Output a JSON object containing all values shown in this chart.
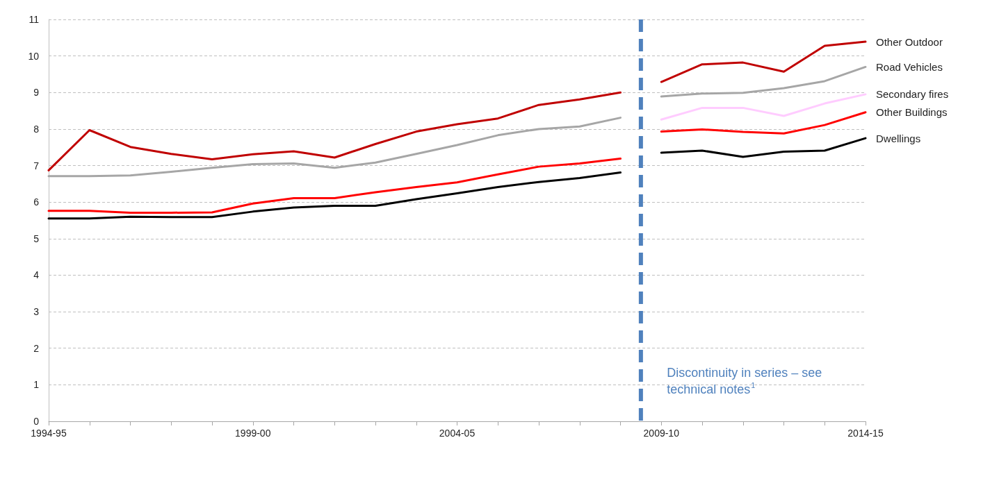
{
  "chart_data": {
    "type": "line",
    "categories": [
      "1994-95",
      null,
      null,
      null,
      null,
      "1999-00",
      null,
      null,
      null,
      null,
      "2004-05",
      null,
      null,
      null,
      null,
      "2009-10",
      null,
      null,
      null,
      null,
      "2014-15"
    ],
    "series": [
      {
        "color": "#c00000",
        "values": [
          6.87,
          7.97,
          7.51,
          7.32,
          7.17,
          7.31,
          7.39,
          7.22,
          7.59,
          7.93,
          8.13,
          8.29,
          8.66,
          8.81,
          9.0,
          null,
          null,
          null,
          null,
          null,
          null
        ]
      },
      {
        "color": "#a6a6a6",
        "values": [
          6.71,
          6.71,
          6.73,
          6.83,
          6.94,
          7.04,
          7.06,
          6.94,
          7.08,
          7.32,
          7.56,
          7.83,
          8.0,
          8.07,
          8.31,
          null,
          null,
          null,
          null,
          null,
          null
        ]
      },
      {
        "color": "#ff0000",
        "values": [
          5.76,
          5.76,
          5.71,
          5.71,
          5.72,
          5.96,
          6.11,
          6.11,
          6.27,
          6.41,
          6.54,
          6.76,
          6.97,
          7.06,
          7.19,
          null,
          null,
          null,
          null,
          null,
          null
        ]
      },
      {
        "color": "#000000",
        "values": [
          5.55,
          5.55,
          5.6,
          5.59,
          5.59,
          5.74,
          5.85,
          5.9,
          5.9,
          6.08,
          6.24,
          6.41,
          6.55,
          6.66,
          6.81,
          null,
          null,
          null,
          null,
          null,
          null
        ]
      },
      {
        "name": "Other Outdoor",
        "color": "#c00000",
        "values": [
          null,
          null,
          null,
          null,
          null,
          null,
          null,
          null,
          null,
          null,
          null,
          null,
          null,
          null,
          null,
          9.29,
          9.77,
          9.82,
          9.57,
          10.28,
          10.39
        ]
      },
      {
        "name": "Road Vehicles",
        "color": "#a6a6a6",
        "values": [
          null,
          null,
          null,
          null,
          null,
          null,
          null,
          null,
          null,
          null,
          null,
          null,
          null,
          null,
          null,
          8.89,
          8.97,
          8.99,
          9.12,
          9.31,
          9.7
        ]
      },
      {
        "name": "Secondary fires",
        "color": "#ffccff",
        "values": [
          null,
          null,
          null,
          null,
          null,
          null,
          null,
          null,
          null,
          null,
          null,
          null,
          null,
          null,
          null,
          8.26,
          8.58,
          8.58,
          8.36,
          8.7,
          8.95
        ]
      },
      {
        "name": "Other Buildings",
        "color": "#ff0000",
        "values": [
          null,
          null,
          null,
          null,
          null,
          null,
          null,
          null,
          null,
          null,
          null,
          null,
          null,
          null,
          null,
          7.93,
          7.99,
          7.92,
          7.88,
          8.11,
          8.46
        ]
      },
      {
        "name": "Dwellings",
        "color": "#000000",
        "values": [
          null,
          null,
          null,
          null,
          null,
          null,
          null,
          null,
          null,
          null,
          null,
          null,
          null,
          null,
          null,
          7.35,
          7.41,
          7.24,
          7.38,
          7.41,
          7.75
        ]
      }
    ],
    "ylim": [
      0,
      11
    ],
    "yticks": [
      0,
      1,
      2,
      3,
      4,
      5,
      6,
      7,
      8,
      9,
      10,
      11
    ],
    "grid": "y",
    "marker": "none",
    "line_style": "solid",
    "legend": false,
    "ref_lines": [
      {
        "axis": "x",
        "value": "2009-10",
        "color": "#4f81bd",
        "line_style": "dashed"
      }
    ],
    "annotations": [
      "Discontinuity in series – see technical notes$^{1}$"
    ]
  }
}
